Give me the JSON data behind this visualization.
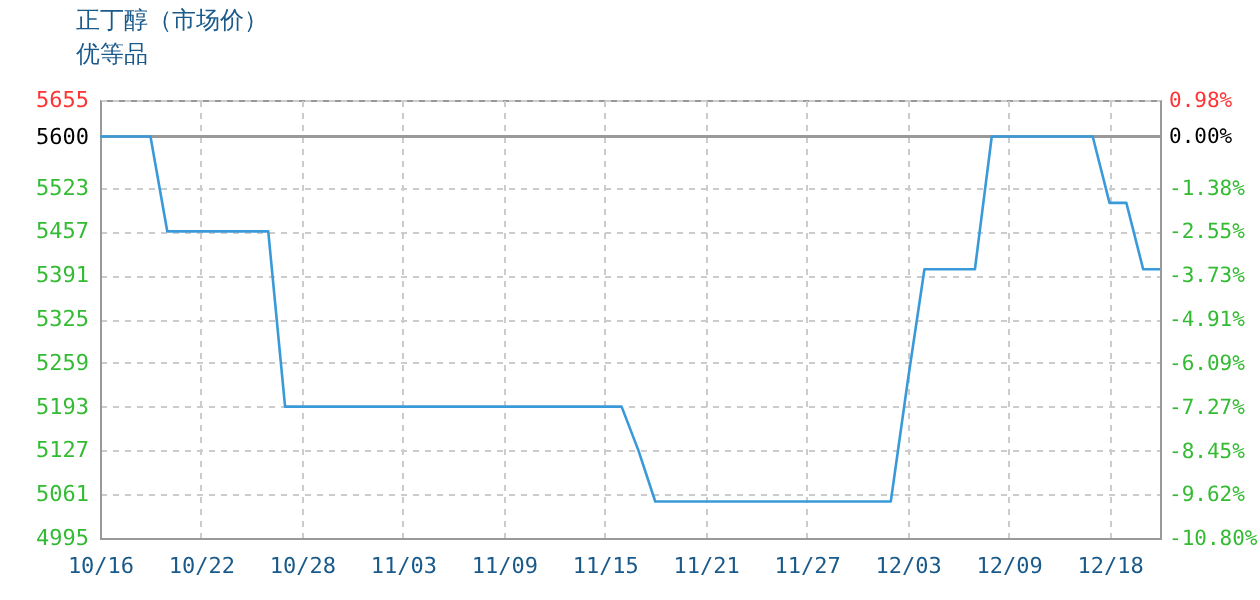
{
  "chart_data": {
    "type": "line",
    "title": "正丁醇（市场价）",
    "subtitle": "优等品",
    "categories": [
      "10/16",
      null,
      null,
      null,
      null,
      null,
      "10/22",
      null,
      null,
      null,
      null,
      null,
      "10/28",
      null,
      null,
      null,
      null,
      null,
      "11/03",
      null,
      null,
      null,
      null,
      null,
      "11/09",
      null,
      null,
      null,
      null,
      null,
      "11/15",
      null,
      null,
      null,
      null,
      null,
      "11/21",
      null,
      null,
      null,
      null,
      null,
      "11/27",
      null,
      null,
      null,
      null,
      null,
      "12/03",
      null,
      null,
      null,
      null,
      null,
      "12/09",
      null,
      null,
      null,
      null,
      null,
      "12/18",
      null,
      null,
      null
    ],
    "series": [
      {
        "color": "#3a9ad9",
        "values": [
          5600,
          5600,
          5600,
          5600,
          5457,
          5457,
          5457,
          5457,
          5457,
          5457,
          5457,
          5193,
          5193,
          5193,
          5193,
          5193,
          5193,
          5193,
          5193,
          5193,
          5193,
          5193,
          5193,
          5193,
          5193,
          5193,
          5193,
          5193,
          5193,
          5193,
          5193,
          5193,
          5127,
          5050,
          5050,
          5050,
          5050,
          5050,
          5050,
          5050,
          5050,
          5050,
          5050,
          5050,
          5050,
          5050,
          5050,
          5050,
          5230,
          5400,
          5400,
          5400,
          5400,
          5600,
          5600,
          5600,
          5600,
          5600,
          5600,
          5600,
          5500,
          5500,
          5400,
          5400
        ]
      }
    ],
    "ylim": [
      4995,
      5655
    ],
    "yticks": [
      4995,
      5061,
      5127,
      5193,
      5259,
      5325,
      5391,
      5457,
      5523,
      5600,
      5655
    ],
    "y2lim": [
      -10.8,
      0.98
    ],
    "y2ticks": [
      {
        "value": -10.8,
        "label": "-10.80%"
      },
      {
        "value": -9.62,
        "label": "-9.62%"
      },
      {
        "value": -8.45,
        "label": "-8.45%"
      },
      {
        "value": -7.27,
        "label": "-7.27%"
      },
      {
        "value": -6.09,
        "label": "-6.09%"
      },
      {
        "value": -4.91,
        "label": "-4.91%"
      },
      {
        "value": -3.73,
        "label": "-3.73%"
      },
      {
        "value": -2.55,
        "label": "-2.55%"
      },
      {
        "value": -1.38,
        "label": "-1.38%"
      },
      {
        "value": 0,
        "label": "0.00%"
      },
      {
        "value": 0.98,
        "label": "0.98%"
      }
    ],
    "ref_lines": [
      {
        "axis": "y2",
        "value": 0,
        "color": "#999999"
      }
    ],
    "grid": true,
    "marker": "none",
    "line_style": "solid",
    "legend": false
  }
}
